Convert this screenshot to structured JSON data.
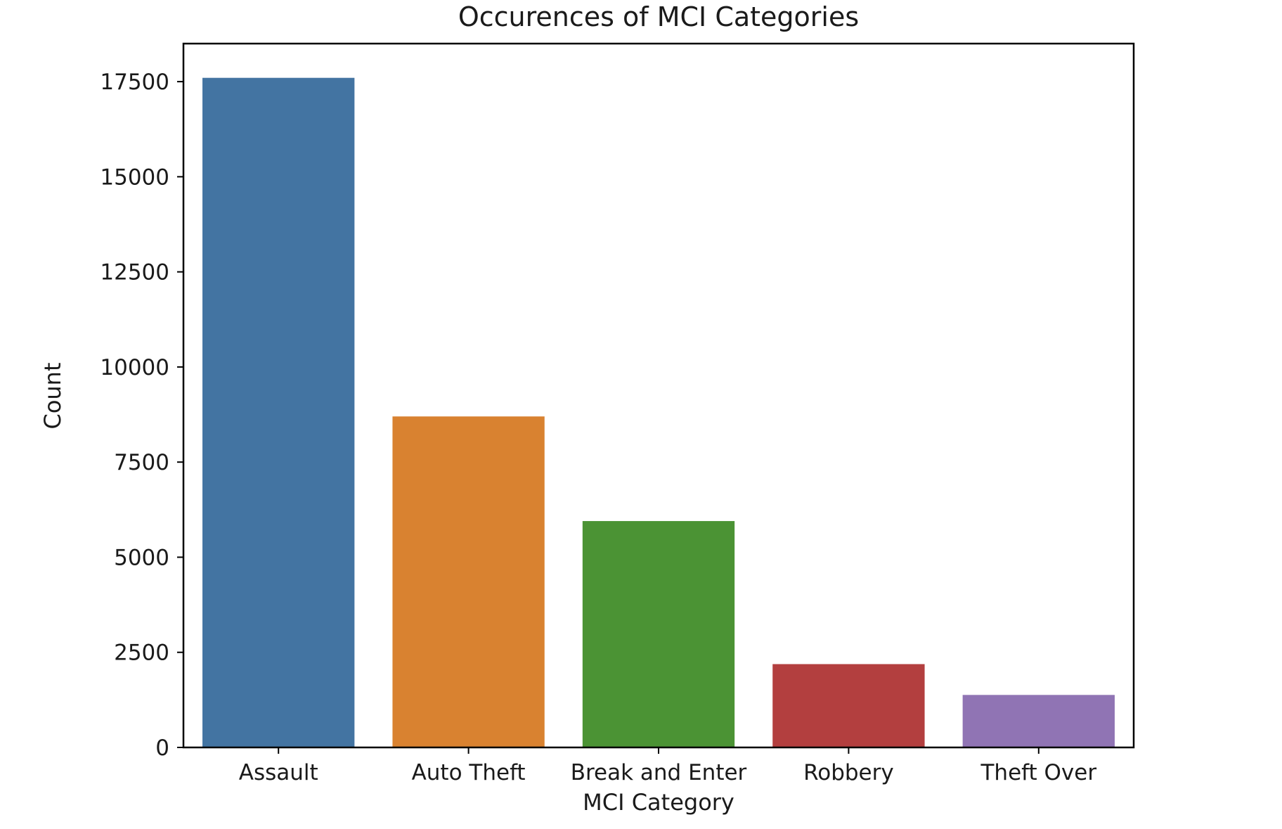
{
  "chart_data": {
    "type": "bar",
    "title": "Occurences of MCI Categories",
    "xlabel": "MCI Category",
    "ylabel": "Count",
    "categories": [
      "Assault",
      "Auto Theft",
      "Break and Enter",
      "Robbery",
      "Theft Over"
    ],
    "values": [
      17600,
      8700,
      5950,
      2190,
      1380
    ],
    "colors": [
      "#4374a2",
      "#d98230",
      "#4b9334",
      "#b33f3f",
      "#9074b4"
    ],
    "ylim": [
      0,
      18500
    ],
    "yticks": [
      0,
      2500,
      5000,
      7500,
      10000,
      12500,
      15000,
      17500
    ],
    "grid": false,
    "legend": "none"
  }
}
